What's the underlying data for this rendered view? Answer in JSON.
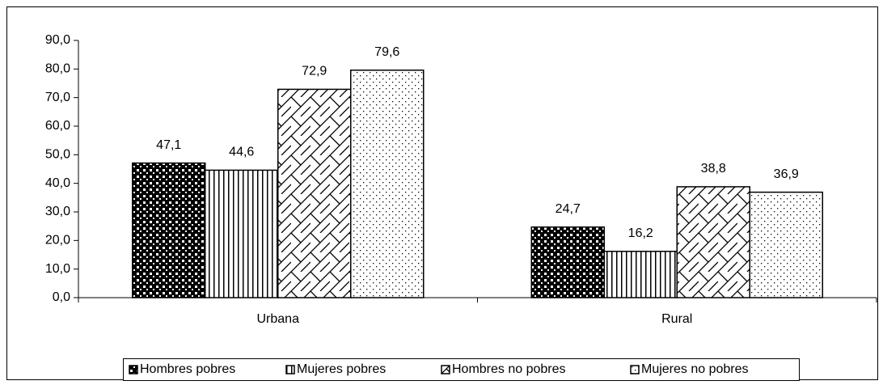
{
  "chart_data": {
    "type": "bar",
    "categories": [
      "Urbana",
      "Rural"
    ],
    "series": [
      {
        "name": "Hombres pobres",
        "color": "#000000",
        "values": [
          47.1,
          24.7
        ],
        "value_labels": [
          "47,1",
          "24,7"
        ]
      },
      {
        "name": "Mujeres pobres",
        "color": "#000000",
        "values": [
          44.6,
          16.2
        ],
        "value_labels": [
          "44,6",
          "16,2"
        ]
      },
      {
        "name": "Hombres no pobres",
        "color": "#000000",
        "values": [
          72.9,
          38.8
        ],
        "value_labels": [
          "72,9",
          "38,8"
        ]
      },
      {
        "name": "Mujeres no pobres",
        "color": "#000000",
        "values": [
          79.6,
          36.9
        ],
        "value_labels": [
          "79,6",
          "36,9"
        ]
      }
    ],
    "ylim": [
      0,
      90
    ],
    "yticks": [
      {
        "value": 0,
        "label": "0,0"
      },
      {
        "value": 10,
        "label": "10,0"
      },
      {
        "value": 20,
        "label": "20,0"
      },
      {
        "value": 30,
        "label": "30,0"
      },
      {
        "value": 40,
        "label": "40,0"
      },
      {
        "value": 50,
        "label": "50,0"
      },
      {
        "value": 60,
        "label": "60,0"
      },
      {
        "value": 70,
        "label": "70,0"
      },
      {
        "value": 80,
        "label": "80,0"
      },
      {
        "value": 90,
        "label": "90,0"
      }
    ],
    "grid": false,
    "legend": "bottom"
  }
}
